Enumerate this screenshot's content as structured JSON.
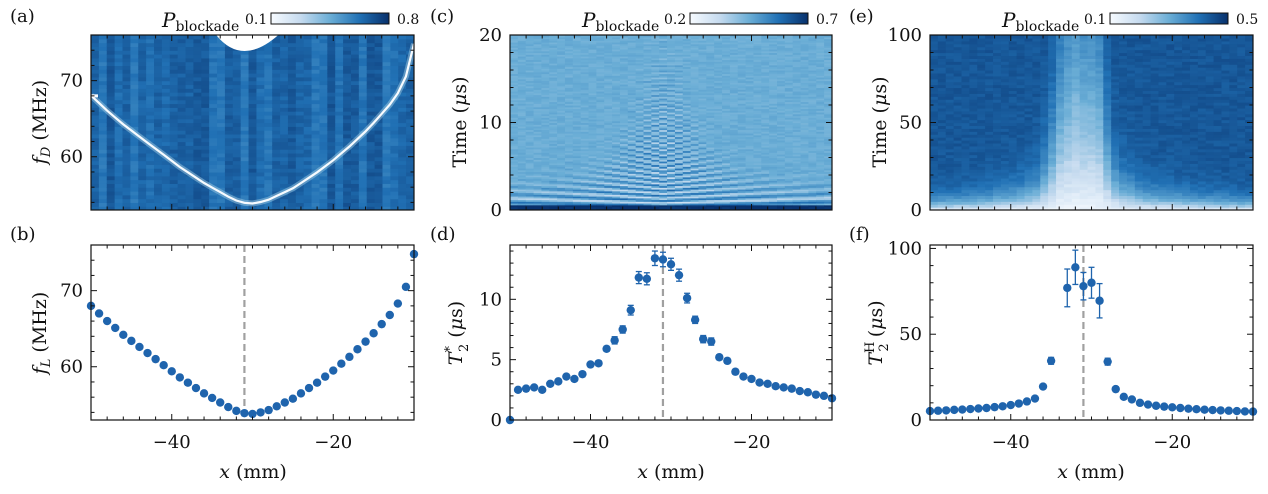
{
  "colors": {
    "dark": "#08306b",
    "light": "#f7fbff",
    "marker": "#1f64ad",
    "dashed": "#a0a0a0",
    "axis": "#111111"
  },
  "xlabel": "x (mm)",
  "colorbars": [
    {
      "label": "P_blockade",
      "min": "0.1",
      "max": "0.8"
    },
    {
      "label": "P_blockade",
      "min": "0.2",
      "max": "0.7"
    },
    {
      "label": "P_blockade",
      "min": "0.1",
      "max": "0.5"
    }
  ],
  "chart_data": [
    {
      "panel": "(a)",
      "type": "heatmap",
      "ylabel": "f_D (MHz)",
      "xlim": [
        -50,
        -10
      ],
      "ylim": [
        53,
        76
      ],
      "yticks": [
        "60",
        "70"
      ],
      "colorbar": [
        0.1,
        0.8
      ],
      "features": "bright resonance curve following f_L(x) on dark background; white unmeasured region at top near x=-31"
    },
    {
      "panel": "(b)",
      "type": "scatter",
      "ylabel": "f_L (MHz)",
      "xlim": [
        -50,
        -10
      ],
      "ylim": [
        53,
        76
      ],
      "xticks": [
        "−40",
        "−20"
      ],
      "yticks": [
        "60",
        "70"
      ],
      "vline": -31,
      "x": [
        -50,
        -49,
        -48,
        -47,
        -46,
        -45,
        -44,
        -43,
        -42,
        -41,
        -40,
        -39,
        -38,
        -37,
        -36,
        -35,
        -34,
        -33,
        -32,
        -31,
        -30,
        -29,
        -28,
        -27,
        -26,
        -25,
        -24,
        -23,
        -22,
        -21,
        -20,
        -19,
        -18,
        -17,
        -16,
        -15,
        -14,
        -13,
        -12,
        -11,
        -10
      ],
      "y": [
        68.0,
        67.0,
        66.0,
        65.1,
        64.2,
        63.4,
        62.6,
        61.8,
        61.0,
        60.2,
        59.4,
        58.6,
        57.9,
        57.2,
        56.5,
        55.9,
        55.3,
        54.7,
        54.2,
        53.9,
        53.8,
        54.0,
        54.3,
        54.8,
        55.3,
        55.8,
        56.5,
        57.2,
        57.9,
        58.7,
        59.5,
        60.4,
        61.3,
        62.3,
        63.3,
        64.4,
        65.6,
        66.8,
        68.3,
        70.5,
        74.8
      ]
    },
    {
      "panel": "(c)",
      "type": "heatmap",
      "ylabel": "Time (μs)",
      "xlim": [
        -50,
        -10
      ],
      "ylim": [
        0,
        20
      ],
      "yticks": [
        "0",
        "10",
        "20"
      ],
      "colorbar": [
        0.2,
        0.7
      ],
      "features": "Ramsey fringes; oscillation period decreasing away from x=-31; fringes decay faster away from center"
    },
    {
      "panel": "(d)",
      "type": "scatter",
      "ylabel": "T2* (μs)",
      "xlim": [
        -50,
        -10
      ],
      "ylim": [
        0,
        14.5
      ],
      "xticks": [
        "−40",
        "−20"
      ],
      "yticks": [
        "0",
        "5",
        "10"
      ],
      "vline": -31,
      "x": [
        -50,
        -49,
        -48,
        -47,
        -46,
        -45,
        -44,
        -43,
        -42,
        -41,
        -40,
        -39,
        -38,
        -37,
        -36,
        -35,
        -34,
        -33,
        -32,
        -31,
        -30,
        -29,
        -28,
        -27,
        -26,
        -25,
        -24,
        -23,
        -22,
        -21,
        -20,
        -19,
        -18,
        -17,
        -16,
        -15,
        -14,
        -13,
        -12,
        -11,
        -10
      ],
      "y": [
        0.0,
        2.5,
        2.6,
        2.7,
        2.5,
        3.0,
        3.2,
        3.6,
        3.4,
        3.8,
        4.6,
        4.7,
        5.9,
        6.6,
        7.5,
        9.1,
        11.8,
        11.7,
        13.4,
        13.3,
        12.9,
        12.0,
        10.1,
        8.3,
        6.7,
        6.5,
        5.2,
        4.9,
        4.0,
        3.6,
        3.4,
        3.1,
        3.0,
        2.8,
        2.7,
        2.6,
        2.4,
        2.3,
        2.1,
        2.0,
        1.8
      ],
      "err": [
        0.1,
        0.1,
        0.1,
        0.1,
        0.1,
        0.1,
        0.1,
        0.1,
        0.1,
        0.1,
        0.2,
        0.2,
        0.2,
        0.3,
        0.3,
        0.4,
        0.5,
        0.5,
        0.6,
        0.6,
        0.5,
        0.5,
        0.4,
        0.3,
        0.3,
        0.3,
        0.2,
        0.2,
        0.2,
        0.1,
        0.1,
        0.1,
        0.1,
        0.1,
        0.1,
        0.1,
        0.1,
        0.1,
        0.1,
        0.1,
        0.1
      ]
    },
    {
      "panel": "(e)",
      "type": "heatmap",
      "ylabel": "Time (μs)",
      "xlim": [
        -50,
        -10
      ],
      "ylim": [
        0,
        100
      ],
      "yticks": [
        "0",
        "50",
        "100"
      ],
      "colorbar": [
        0.1,
        0.5
      ],
      "features": "bright decay near t=0; long-lived bright column centered at x=-31"
    },
    {
      "panel": "(f)",
      "type": "scatter",
      "ylabel": "T2H (μs)",
      "xlim": [
        -50,
        -10
      ],
      "ylim": [
        0,
        102
      ],
      "xticks": [
        "−40",
        "−20"
      ],
      "yticks": [
        "0",
        "50",
        "100"
      ],
      "vline": -31,
      "x": [
        -50,
        -49,
        -48,
        -47,
        -46,
        -45,
        -44,
        -43,
        -42,
        -41,
        -40,
        -39,
        -38,
        -37,
        -36,
        -35,
        -34,
        -33,
        -32,
        -31,
        -30,
        -29,
        -28,
        -27,
        -26,
        -25,
        -24,
        -23,
        -22,
        -21,
        -20,
        -19,
        -18,
        -17,
        -16,
        -15,
        -14,
        -13,
        -12,
        -11,
        -10
      ],
      "y": [
        5.2,
        5.4,
        5.6,
        5.9,
        6.1,
        6.4,
        6.7,
        7.0,
        7.5,
        8.0,
        8.7,
        9.6,
        10.8,
        12.5,
        19.5,
        34.5,
        null,
        77.0,
        89.0,
        78.0,
        80.0,
        69.5,
        34.0,
        18.0,
        13.5,
        12.0,
        10.0,
        9.0,
        8.3,
        7.8,
        7.4,
        7.0,
        6.6,
        6.3,
        6.0,
        5.8,
        5.6,
        5.4,
        5.2,
        5.0,
        4.9
      ],
      "err": [
        0.3,
        0.3,
        0.3,
        0.3,
        0.3,
        0.3,
        0.3,
        0.3,
        0.4,
        0.4,
        0.4,
        0.5,
        0.6,
        0.8,
        1.0,
        2.0,
        null,
        11.0,
        10.0,
        8.0,
        9.0,
        10.0,
        2.0,
        1.0,
        0.7,
        0.6,
        0.5,
        0.5,
        0.4,
        0.4,
        0.4,
        0.3,
        0.3,
        0.3,
        0.3,
        0.3,
        0.3,
        0.3,
        0.3,
        0.3,
        0.3
      ]
    }
  ]
}
